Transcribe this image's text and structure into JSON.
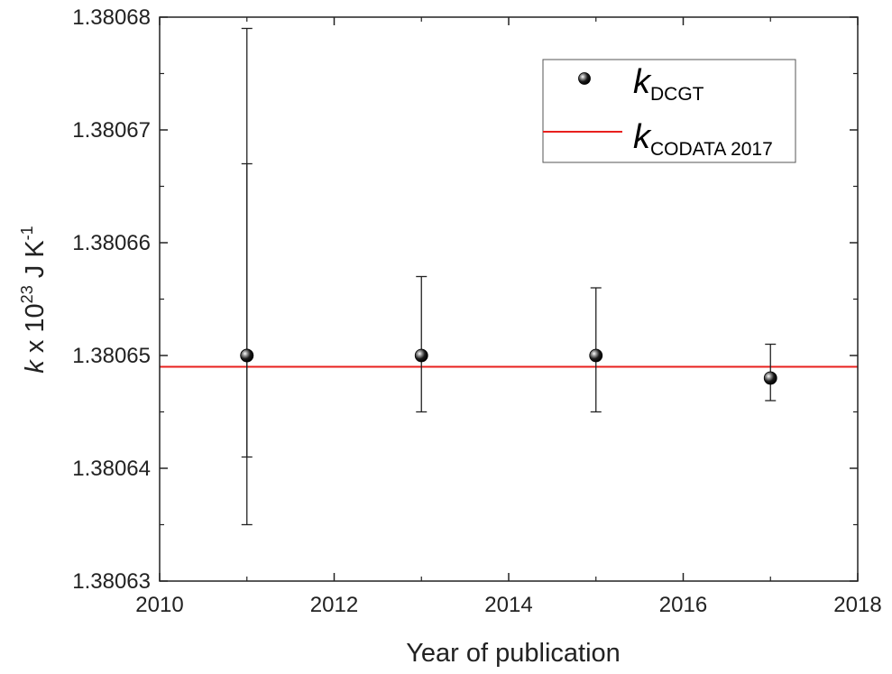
{
  "chart_data": {
    "type": "scatter",
    "xlabel": "Year of publication",
    "ylabel": {
      "italic": "k",
      "prefix": " x 10",
      "exponent": "23",
      "unit": " J K",
      "unit_exponent": "-1"
    },
    "xlim": [
      2010,
      2018
    ],
    "ylim": [
      1.38063,
      1.38068
    ],
    "x_ticks": [
      2010,
      2012,
      2014,
      2016,
      2018
    ],
    "y_ticks": [
      "1.38063",
      "1.38064",
      "1.38065",
      "1.38066",
      "1.38067",
      "1.38068"
    ],
    "grid": false,
    "legend_position": "top-right",
    "series": [
      {
        "name": {
          "main": "k",
          "sub": "DCGT"
        },
        "kind": "points-with-error-bars",
        "color": "#111111",
        "points": [
          {
            "x": 2011,
            "y": 1.38065,
            "yerr_low": 1.380635,
            "yerr_high": 1.380679
          },
          {
            "x": 2011,
            "y": 1.38065,
            "yerr_low": 1.380641,
            "yerr_high": 1.380667
          },
          {
            "x": 2013,
            "y": 1.38065,
            "yerr_low": 1.380645,
            "yerr_high": 1.380657
          },
          {
            "x": 2015,
            "y": 1.38065,
            "yerr_low": 1.380645,
            "yerr_high": 1.380656
          },
          {
            "x": 2017,
            "y": 1.380648,
            "yerr_low": 1.380646,
            "yerr_high": 1.380651
          }
        ]
      },
      {
        "name": {
          "main": "k",
          "sub": "CODATA 2017"
        },
        "kind": "horizontal-line",
        "color": "#e8201e",
        "y": 1.380649
      }
    ]
  }
}
